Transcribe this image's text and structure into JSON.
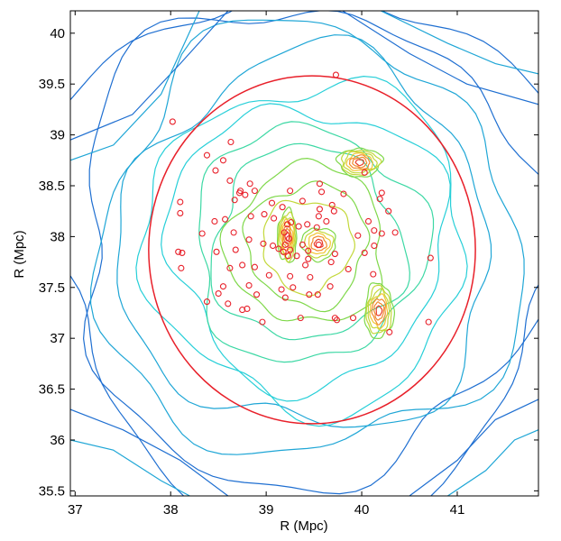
{
  "chart_data": {
    "type": "scatter",
    "xlabel": "R (Mpc)",
    "ylabel": "R (Mpc)",
    "xlim": [
      36.95,
      41.85
    ],
    "ylim": [
      35.45,
      40.22
    ],
    "xticks": [
      37,
      38,
      39,
      40,
      41
    ],
    "yticks": [
      35.5,
      36,
      36.5,
      37,
      37.5,
      38,
      38.5,
      39,
      39.5,
      40
    ],
    "grid": false,
    "circle": {
      "center": [
        39.48,
        37.87
      ],
      "radius": 1.71,
      "color": "#e8202a"
    },
    "contour_colors": [
      "#1f6fd1",
      "#1fa6d6",
      "#27cfd8",
      "#3cd8a4",
      "#7fd84a",
      "#c3d83a",
      "#f1c533",
      "#f08a2c",
      "#e8402a"
    ],
    "contour_peaks": [
      {
        "x": 39.98,
        "y": 38.73
      },
      {
        "x": 40.18,
        "y": 37.27
      },
      {
        "x": 39.22,
        "y": 38.0
      },
      {
        "x": 39.55,
        "y": 37.93
      }
    ],
    "series": [
      {
        "marker": "open-circle",
        "color": "#e8202a",
        "points": [
          [
            39.73,
            39.59
          ],
          [
            38.02,
            39.13
          ],
          [
            38.63,
            38.93
          ],
          [
            38.55,
            38.75
          ],
          [
            38.38,
            38.8
          ],
          [
            38.47,
            38.65
          ],
          [
            40.03,
            38.63
          ],
          [
            38.62,
            38.55
          ],
          [
            38.83,
            38.52
          ],
          [
            38.73,
            38.45
          ],
          [
            38.72,
            38.43
          ],
          [
            38.88,
            38.45
          ],
          [
            39.25,
            38.45
          ],
          [
            39.56,
            38.52
          ],
          [
            39.58,
            38.44
          ],
          [
            39.81,
            38.42
          ],
          [
            40.21,
            38.43
          ],
          [
            40.19,
            38.37
          ],
          [
            38.1,
            38.34
          ],
          [
            38.1,
            38.23
          ],
          [
            38.78,
            38.41
          ],
          [
            38.67,
            38.36
          ],
          [
            39.06,
            38.33
          ],
          [
            39.17,
            38.29
          ],
          [
            39.38,
            38.35
          ],
          [
            39.69,
            38.31
          ],
          [
            39.71,
            38.25
          ],
          [
            39.56,
            38.27
          ],
          [
            39.55,
            38.2
          ],
          [
            40.28,
            38.25
          ],
          [
            38.57,
            38.17
          ],
          [
            38.46,
            38.15
          ],
          [
            38.33,
            38.03
          ],
          [
            38.66,
            38.04
          ],
          [
            38.84,
            38.2
          ],
          [
            38.98,
            38.22
          ],
          [
            39.08,
            38.18
          ],
          [
            39.26,
            38.14
          ],
          [
            39.34,
            38.1
          ],
          [
            39.43,
            38.12
          ],
          [
            39.53,
            38.09
          ],
          [
            39.63,
            38.15
          ],
          [
            40.07,
            38.15
          ],
          [
            40.13,
            38.06
          ],
          [
            40.21,
            38.03
          ],
          [
            40.35,
            38.04
          ],
          [
            39.96,
            38.01
          ],
          [
            38.08,
            37.85
          ],
          [
            38.12,
            37.84
          ],
          [
            38.48,
            37.85
          ],
          [
            38.68,
            37.87
          ],
          [
            38.82,
            37.97
          ],
          [
            38.97,
            37.93
          ],
          [
            39.07,
            37.91
          ],
          [
            39.38,
            37.92
          ],
          [
            39.44,
            37.86
          ],
          [
            39.55,
            37.92
          ],
          [
            39.13,
            37.88
          ],
          [
            39.32,
            37.81
          ],
          [
            39.44,
            37.78
          ],
          [
            39.72,
            37.83
          ],
          [
            40.03,
            37.84
          ],
          [
            40.13,
            37.91
          ],
          [
            38.11,
            37.69
          ],
          [
            38.62,
            37.69
          ],
          [
            38.75,
            37.72
          ],
          [
            38.88,
            37.7
          ],
          [
            39.03,
            37.62
          ],
          [
            39.25,
            37.61
          ],
          [
            39.41,
            37.72
          ],
          [
            39.46,
            37.6
          ],
          [
            39.68,
            37.75
          ],
          [
            39.86,
            37.68
          ],
          [
            40.12,
            37.63
          ],
          [
            40.72,
            37.79
          ],
          [
            38.55,
            37.51
          ],
          [
            38.82,
            37.52
          ],
          [
            39.16,
            37.48
          ],
          [
            39.28,
            37.5
          ],
          [
            39.45,
            37.43
          ],
          [
            39.54,
            37.43
          ],
          [
            39.67,
            37.51
          ],
          [
            38.5,
            37.44
          ],
          [
            38.9,
            37.43
          ],
          [
            38.6,
            37.34
          ],
          [
            39.2,
            37.4
          ],
          [
            38.38,
            37.36
          ],
          [
            38.8,
            37.29
          ],
          [
            38.75,
            37.28
          ],
          [
            39.36,
            37.2
          ],
          [
            39.72,
            37.2
          ],
          [
            39.74,
            37.18
          ],
          [
            39.91,
            37.2
          ],
          [
            38.96,
            37.16
          ],
          [
            40.7,
            37.16
          ],
          [
            40.29,
            37.06
          ],
          [
            39.22,
            38.12
          ],
          [
            39.19,
            38.04
          ],
          [
            39.24,
            37.98
          ],
          [
            39.2,
            37.92
          ],
          [
            39.25,
            37.87
          ],
          [
            39.18,
            37.85
          ],
          [
            39.23,
            37.81
          ]
        ]
      }
    ]
  }
}
